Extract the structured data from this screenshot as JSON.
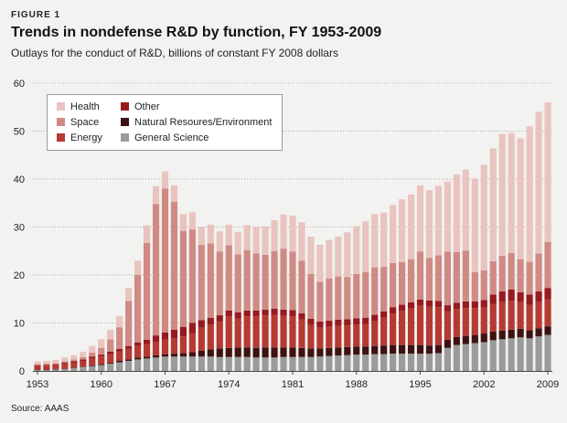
{
  "header": {
    "figure_label": "FIGURE 1",
    "title": "Trends in nondefense R&D by function, FY 1953-2009",
    "subtitle": "Outlays for the conduct of R&D, billions of constant FY 2008 dollars"
  },
  "footer": {
    "source": "Source: AAAS"
  },
  "colors": {
    "background": "#f2f2f0",
    "grid": "#aaaaaa"
  },
  "chart_data": {
    "type": "bar",
    "stacked": true,
    "title": "Trends in nondefense R&D by function, FY 1953-2009",
    "xlabel": "",
    "ylabel": "",
    "ylim": [
      0,
      60
    ],
    "yticks": [
      0,
      10,
      20,
      30,
      40,
      50,
      60
    ],
    "xticks": [
      "1953",
      "1960",
      "1967",
      "1974",
      "1981",
      "1988",
      "1995",
      "2002",
      "2009"
    ],
    "grid": true,
    "legend_position": "top-left",
    "categories": [
      "1953",
      "1954",
      "1955",
      "1956",
      "1957",
      "1958",
      "1959",
      "1960",
      "1961",
      "1962",
      "1963",
      "1964",
      "1965",
      "1966",
      "1967",
      "1968",
      "1969",
      "1970",
      "1971",
      "1972",
      "1973",
      "1974",
      "1975",
      "1976",
      "1977",
      "1978",
      "1979",
      "1980",
      "1981",
      "1982",
      "1983",
      "1984",
      "1985",
      "1986",
      "1987",
      "1988",
      "1989",
      "1990",
      "1991",
      "1992",
      "1993",
      "1994",
      "1995",
      "1996",
      "1997",
      "1998",
      "1999",
      "2000",
      "2001",
      "2002",
      "2003",
      "2004",
      "2005",
      "2006",
      "2007",
      "2008",
      "2009"
    ],
    "series": [
      {
        "name": "General Science",
        "color": "#9b9b9b",
        "values": [
          0.2,
          0.2,
          0.3,
          0.4,
          0.6,
          0.8,
          1.0,
          1.2,
          1.5,
          1.8,
          2.1,
          2.4,
          2.6,
          2.8,
          3.0,
          3.0,
          3.0,
          3.0,
          3.0,
          3.0,
          2.9,
          2.9,
          2.9,
          2.9,
          2.8,
          2.8,
          2.8,
          2.9,
          2.9,
          2.9,
          2.9,
          3.0,
          3.1,
          3.2,
          3.3,
          3.4,
          3.4,
          3.5,
          3.5,
          3.6,
          3.6,
          3.6,
          3.6,
          3.6,
          3.7,
          4.8,
          5.4,
          5.6,
          5.8,
          6.0,
          6.4,
          6.6,
          6.8,
          7.0,
          6.8,
          7.2,
          7.5
        ]
      },
      {
        "name": "Natural Resoures/Environment",
        "color": "#3f1212",
        "values": [
          0.1,
          0.1,
          0.1,
          0.1,
          0.1,
          0.1,
          0.2,
          0.2,
          0.2,
          0.3,
          0.3,
          0.4,
          0.4,
          0.5,
          0.5,
          0.6,
          0.7,
          0.9,
          1.2,
          1.5,
          1.8,
          1.9,
          2.0,
          2.0,
          2.0,
          2.1,
          2.1,
          2.0,
          2.0,
          1.9,
          1.8,
          1.7,
          1.7,
          1.7,
          1.7,
          1.7,
          1.7,
          1.7,
          1.8,
          1.8,
          1.8,
          1.8,
          1.8,
          1.7,
          1.7,
          1.7,
          1.7,
          1.7,
          1.7,
          1.8,
          1.8,
          1.8,
          1.8,
          1.8,
          1.7,
          1.7,
          1.8
        ]
      },
      {
        "name": "Energy",
        "color": "#b53a32",
        "values": [
          0.7,
          0.8,
          0.8,
          0.9,
          1.0,
          1.2,
          1.4,
          1.6,
          1.8,
          2.0,
          2.2,
          2.4,
          2.6,
          2.8,
          3.0,
          3.2,
          3.5,
          4.0,
          4.8,
          5.2,
          5.6,
          6.5,
          6.0,
          6.5,
          6.6,
          6.7,
          6.8,
          6.6,
          6.5,
          5.9,
          4.9,
          4.3,
          4.4,
          4.5,
          4.5,
          4.6,
          4.7,
          5.2,
          5.8,
          6.6,
          7.1,
          7.6,
          8.2,
          8.1,
          7.9,
          5.9,
          5.8,
          5.8,
          5.6,
          5.4,
          5.8,
          6.0,
          6.0,
          5.6,
          5.3,
          5.5,
          5.6
        ]
      },
      {
        "name": "Other",
        "color": "#961a1e",
        "values": [
          0.2,
          0.2,
          0.2,
          0.3,
          0.3,
          0.3,
          0.4,
          0.4,
          0.5,
          0.5,
          0.6,
          0.7,
          0.9,
          1.3,
          1.5,
          1.8,
          2.0,
          2.1,
          1.6,
          1.4,
          1.3,
          1.3,
          1.3,
          1.2,
          1.2,
          1.2,
          1.3,
          1.3,
          1.3,
          1.3,
          1.3,
          1.3,
          1.3,
          1.3,
          1.3,
          1.3,
          1.3,
          1.3,
          1.3,
          1.3,
          1.3,
          1.3,
          1.3,
          1.3,
          1.3,
          1.3,
          1.3,
          1.4,
          1.4,
          1.6,
          1.9,
          2.2,
          2.4,
          2.0,
          2.1,
          2.2,
          2.4
        ]
      },
      {
        "name": "Space",
        "color": "#d08a84",
        "values": [
          0.2,
          0.2,
          0.2,
          0.3,
          0.4,
          0.5,
          0.8,
          1.4,
          2.6,
          4.5,
          9.4,
          14.1,
          20.2,
          27.4,
          30.0,
          26.7,
          20.0,
          19.5,
          15.7,
          15.5,
          13.3,
          13.6,
          12.1,
          12.6,
          11.9,
          11.4,
          12.0,
          12.7,
          12.2,
          11.0,
          9.3,
          8.3,
          8.8,
          9.0,
          8.8,
          9.2,
          9.5,
          9.9,
          9.3,
          9.2,
          8.9,
          9.0,
          10.0,
          8.9,
          9.5,
          11.2,
          10.6,
          10.6,
          6.1,
          6.2,
          7.0,
          7.4,
          7.6,
          6.9,
          6.9,
          7.9,
          9.6
        ]
      },
      {
        "name": "Health",
        "color": "#e9c4bf",
        "values": [
          0.6,
          0.6,
          0.7,
          0.8,
          0.9,
          1.1,
          1.4,
          1.8,
          2.0,
          2.3,
          2.7,
          3.0,
          3.6,
          3.7,
          3.6,
          3.4,
          3.5,
          3.6,
          3.7,
          3.9,
          4.2,
          4.3,
          4.7,
          5.2,
          5.5,
          5.9,
          6.4,
          7.1,
          7.5,
          8.0,
          7.8,
          7.7,
          8.0,
          8.3,
          9.3,
          10.0,
          10.6,
          11.1,
          11.3,
          12.1,
          13.1,
          13.5,
          13.8,
          14.1,
          14.5,
          14.6,
          16.2,
          16.9,
          19.5,
          22.0,
          23.5,
          25.4,
          25.0,
          25.2,
          28.2,
          29.5,
          29.1
        ]
      }
    ]
  }
}
